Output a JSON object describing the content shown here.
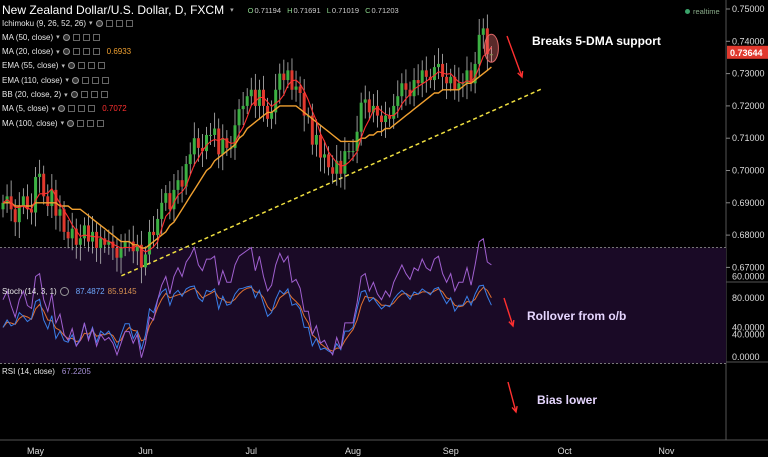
{
  "title": {
    "symbol": "New Zealand Dollar/U.S. Dollar, D, FXCM",
    "open_label": "O",
    "open": "0.71194",
    "high_label": "H",
    "high": "0.71691",
    "low_label": "L",
    "low": "0.71019",
    "close_label": "C",
    "close": "0.71203"
  },
  "realtime_label": "realtime",
  "indicators": [
    {
      "label": "Ichimoku (9, 26, 52, 26)",
      "value": "",
      "color": "#e6e6e6"
    },
    {
      "label": "MA (50, close)",
      "value": "",
      "color": "#e6e6e6"
    },
    {
      "label": "MA (20, close)",
      "value": "0.6933",
      "color": "#f0a030"
    },
    {
      "label": "EMA (55, close)",
      "value": "",
      "color": "#e6e6e6"
    },
    {
      "label": "EMA (110, close)",
      "value": "",
      "color": "#e6e6e6"
    },
    {
      "label": "BB (20, close, 2)",
      "value": "",
      "color": "#e6e6e6"
    },
    {
      "label": "MA (5, close)",
      "value": "0.7072",
      "color": "#ff3030"
    },
    {
      "label": "MA (100, close)",
      "value": "",
      "color": "#e6e6e6"
    }
  ],
  "price_tag": "0.73644",
  "annotations": {
    "price": "Breaks 5-DMA support",
    "stoch": "Rollover from o/b",
    "rsi": "Bias lower"
  },
  "stoch_label": {
    "name": "Stoch (14, 3, 1)",
    "k": "87.4872",
    "d": "85.9145"
  },
  "rsi_label": {
    "name": "RSI (14, close)",
    "value": "67.2205"
  },
  "colors": {
    "up": "#3cb043",
    "down": "#e0392e",
    "ma20": "#f0a030",
    "ma5": "#ff3030",
    "trend": "#f0e040",
    "stoch_k": "#3a7ee8",
    "stoch_d": "#e07030",
    "rsi": "#a060d0",
    "band": "#2a0f3a",
    "arrow": "#ff3030"
  },
  "chart_data": [
    {
      "type": "candlestick",
      "title": "New Zealand Dollar/U.S. Dollar, D, FXCM",
      "x_ticks": [
        "May",
        "Jun",
        "Jul",
        "Aug",
        "Sep",
        "Oct",
        "Nov"
      ],
      "y_ticks": [
        "0.67000",
        "0.68000",
        "0.69000",
        "0.70000",
        "0.71000",
        "0.72000",
        "0.73000",
        "0.74000",
        "0.75000"
      ],
      "ylim": [
        0.6635,
        0.7515
      ],
      "closes": [
        0.69,
        0.692,
        0.688,
        0.684,
        0.689,
        0.692,
        0.688,
        0.687,
        0.698,
        0.699,
        0.692,
        0.689,
        0.694,
        0.686,
        0.688,
        0.681,
        0.679,
        0.682,
        0.677,
        0.679,
        0.683,
        0.678,
        0.681,
        0.676,
        0.679,
        0.677,
        0.678,
        0.676,
        0.673,
        0.676,
        0.678,
        0.678,
        0.675,
        0.677,
        0.67,
        0.674,
        0.681,
        0.68,
        0.685,
        0.69,
        0.693,
        0.688,
        0.694,
        0.697,
        0.695,
        0.702,
        0.705,
        0.71,
        0.707,
        0.706,
        0.711,
        0.711,
        0.713,
        0.705,
        0.71,
        0.707,
        0.707,
        0.714,
        0.719,
        0.72,
        0.723,
        0.725,
        0.72,
        0.725,
        0.72,
        0.716,
        0.718,
        0.725,
        0.73,
        0.728,
        0.731,
        0.725,
        0.726,
        0.724,
        0.717,
        0.717,
        0.708,
        0.711,
        0.704,
        0.705,
        0.701,
        0.699,
        0.703,
        0.699,
        0.706,
        0.706,
        0.706,
        0.712,
        0.721,
        0.722,
        0.718,
        0.72,
        0.717,
        0.715,
        0.717,
        0.716,
        0.72,
        0.723,
        0.727,
        0.725,
        0.723,
        0.728,
        0.727,
        0.731,
        0.729,
        0.728,
        0.732,
        0.733,
        0.729,
        0.727,
        0.729,
        0.725,
        0.727,
        0.727,
        0.731,
        0.727,
        0.733,
        0.742,
        0.744,
        0.736,
        0.736
      ],
      "ma20_label": "MA (20, close)",
      "ma5_label": "MA (5, close)",
      "trendline": {
        "start": [
          34,
          0.668
        ],
        "end": [
          150,
          0.7255
        ]
      },
      "ma20": [
        0.69,
        0.69,
        0.69,
        0.689,
        0.689,
        0.689,
        0.689,
        0.689,
        0.69,
        0.69,
        0.69,
        0.69,
        0.69,
        0.69,
        0.689,
        0.689,
        0.689,
        0.688,
        0.688,
        0.688,
        0.687,
        0.686,
        0.685,
        0.684,
        0.683,
        0.682,
        0.681,
        0.68,
        0.679,
        0.678,
        0.678,
        0.678,
        0.677,
        0.677,
        0.676,
        0.676,
        0.677,
        0.678,
        0.679,
        0.68,
        0.681,
        0.683,
        0.684,
        0.686,
        0.688,
        0.69,
        0.692,
        0.694,
        0.696,
        0.698,
        0.7,
        0.701,
        0.703,
        0.704,
        0.705,
        0.706,
        0.707,
        0.708,
        0.71,
        0.711,
        0.713,
        0.714,
        0.715,
        0.716,
        0.717,
        0.718,
        0.718,
        0.719,
        0.72,
        0.72,
        0.72,
        0.72,
        0.72,
        0.719,
        0.718,
        0.717,
        0.716,
        0.715,
        0.714,
        0.713,
        0.712,
        0.711,
        0.71,
        0.709,
        0.709,
        0.709,
        0.709,
        0.709,
        0.71,
        0.71,
        0.711,
        0.711,
        0.712,
        0.712,
        0.713,
        0.713,
        0.714,
        0.715,
        0.716,
        0.717,
        0.718,
        0.719,
        0.72,
        0.721,
        0.722,
        0.723,
        0.724,
        0.724,
        0.725,
        0.725,
        0.725,
        0.725,
        0.725,
        0.726,
        0.727,
        0.727,
        0.728,
        0.729,
        0.73,
        0.731,
        0.732
      ]
    },
    {
      "type": "line",
      "title": "Stoch (14, 3, 1)",
      "y_ticks": [
        "0.0000",
        "40.0000",
        "80.0000"
      ],
      "ylim": [
        0,
        100
      ],
      "bands": [
        20,
        80
      ],
      "series": [
        {
          "name": "%K",
          "values": [
            40,
            50,
            42,
            45,
            60,
            55,
            48,
            52,
            75,
            78,
            50,
            38,
            56,
            25,
            35,
            22,
            20,
            30,
            15,
            25,
            45,
            25,
            40,
            20,
            35,
            30,
            35,
            25,
            12,
            30,
            45,
            45,
            25,
            35,
            10,
            30,
            65,
            60,
            78,
            88,
            92,
            70,
            85,
            90,
            82,
            92,
            95,
            96,
            80,
            75,
            90,
            88,
            92,
            65,
            82,
            70,
            72,
            85,
            92,
            93,
            95,
            96,
            80,
            90,
            72,
            55,
            60,
            78,
            90,
            85,
            92,
            70,
            72,
            65,
            40,
            40,
            15,
            25,
            10,
            12,
            8,
            5,
            18,
            10,
            35,
            35,
            40,
            65,
            88,
            90,
            75,
            80,
            72,
            65,
            70,
            68,
            78,
            85,
            90,
            85,
            78,
            88,
            85,
            92,
            88,
            84,
            92,
            94,
            82,
            72,
            80,
            62,
            70,
            70,
            82,
            70,
            85,
            96,
            97,
            82,
            70
          ]
        },
        {
          "name": "%D",
          "values": [
            40,
            47,
            46,
            44,
            52,
            56,
            54,
            51,
            65,
            71,
            62,
            50,
            49,
            39,
            36,
            29,
            25,
            25,
            21,
            22,
            32,
            31,
            36,
            28,
            30,
            30,
            32,
            29,
            20,
            23,
            34,
            40,
            36,
            35,
            22,
            24,
            42,
            52,
            67,
            78,
            86,
            80,
            82,
            84,
            85,
            88,
            91,
            93,
            87,
            80,
            83,
            86,
            89,
            80,
            78,
            74,
            74,
            78,
            85,
            90,
            93,
            94,
            88,
            87,
            80,
            68,
            62,
            68,
            80,
            84,
            88,
            80,
            75,
            69,
            55,
            46,
            30,
            25,
            18,
            14,
            10,
            8,
            12,
            12,
            22,
            30,
            37,
            50,
            70,
            82,
            80,
            80,
            76,
            70,
            70,
            69,
            73,
            80,
            85,
            86,
            82,
            84,
            85,
            88,
            88,
            86,
            89,
            92,
            88,
            80,
            78,
            70,
            68,
            69,
            75,
            74,
            78,
            88,
            94,
            90,
            80
          ]
        }
      ]
    },
    {
      "type": "line",
      "title": "RSI (14, close)",
      "y_ticks": [
        "40.0000",
        "60.0000"
      ],
      "ylim": [
        28,
        73
      ],
      "bands": [
        30,
        70
      ],
      "series": [
        {
          "name": "RSI",
          "values": [
            52,
            55,
            50,
            46,
            52,
            55,
            50,
            49,
            60,
            61,
            52,
            48,
            54,
            44,
            47,
            40,
            38,
            42,
            36,
            38,
            44,
            38,
            42,
            36,
            40,
            38,
            39,
            37,
            33,
            37,
            41,
            41,
            37,
            40,
            32,
            37,
            46,
            45,
            52,
            57,
            60,
            54,
            60,
            63,
            60,
            65,
            67,
            70,
            64,
            62,
            66,
            66,
            67,
            57,
            62,
            58,
            58,
            64,
            67,
            68,
            69,
            70,
            62,
            67,
            60,
            55,
            57,
            64,
            68,
            65,
            67,
            58,
            59,
            56,
            48,
            48,
            40,
            43,
            37,
            38,
            35,
            33,
            39,
            35,
            44,
            44,
            44,
            51,
            60,
            61,
            55,
            58,
            54,
            52,
            55,
            53,
            58,
            61,
            64,
            61,
            59,
            63,
            62,
            66,
            63,
            62,
            66,
            67,
            61,
            58,
            61,
            55,
            58,
            58,
            63,
            57,
            64,
            72,
            73,
            65,
            64
          ]
        }
      ]
    }
  ]
}
